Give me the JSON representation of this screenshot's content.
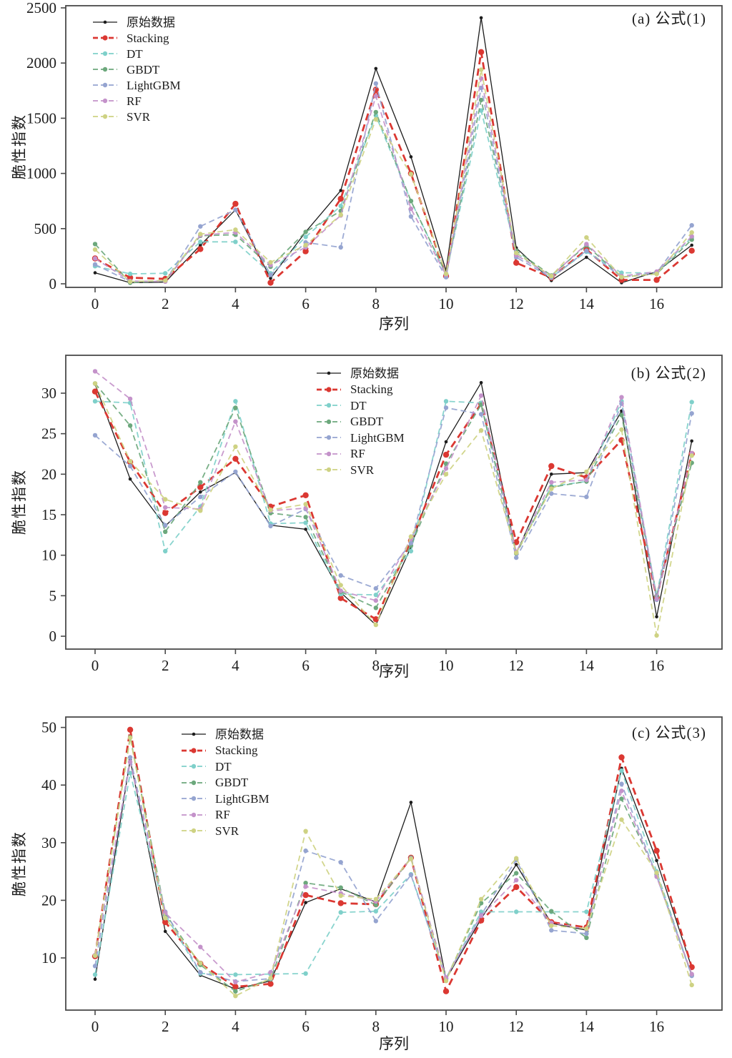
{
  "figure": {
    "ylabel": "脆性指数",
    "xlabel": "序列"
  },
  "chart_data": [
    {
      "type": "line",
      "panel": "a",
      "title": "(a) 公式(1)",
      "xlabel": "序列",
      "ylabel": "脆性指数",
      "x": [
        0,
        1,
        2,
        3,
        4,
        5,
        6,
        7,
        8,
        9,
        10,
        11,
        12,
        13,
        14,
        15,
        16,
        17
      ],
      "xticks": [
        0,
        2,
        4,
        6,
        8,
        10,
        12,
        14,
        16
      ],
      "yticks": [
        0,
        500,
        1000,
        1500,
        2000,
        2500
      ],
      "ylim": [
        0,
        2500
      ],
      "legend_position": "upper-left",
      "grid": false,
      "series": [
        {
          "name": "原始数据",
          "color": "#1c1c1c",
          "line_style": "solid",
          "values": [
            100,
            10,
            15,
            350,
            670,
            50,
            470,
            845,
            1950,
            1150,
            120,
            2410,
            325,
            30,
            240,
            10,
            110,
            350
          ]
        },
        {
          "name": "Stacking",
          "color": "#db3832",
          "line_style": "dashed-bold",
          "values": [
            230,
            55,
            45,
            315,
            725,
            10,
            295,
            770,
            1760,
            1000,
            70,
            2100,
            190,
            55,
            310,
            35,
            35,
            300
          ]
        },
        {
          "name": "DT",
          "color": "#7fd0ca",
          "line_style": "dashed",
          "values": [
            160,
            90,
            95,
            380,
            380,
            95,
            425,
            705,
            1525,
            750,
            90,
            1570,
            280,
            60,
            290,
            100,
            100,
            420
          ]
        },
        {
          "name": "GBDT",
          "color": "#6ca87c",
          "line_style": "dashed",
          "values": [
            360,
            10,
            25,
            435,
            445,
            155,
            470,
            660,
            1555,
            750,
            90,
            1665,
            300,
            75,
            350,
            60,
            90,
            400
          ]
        },
        {
          "name": "LightGBM",
          "color": "#95a4d0",
          "line_style": "dashed",
          "values": [
            175,
            20,
            25,
            520,
            670,
            80,
            375,
            330,
            1815,
            610,
            60,
            1775,
            240,
            55,
            300,
            60,
            100,
            530
          ]
        },
        {
          "name": "RF",
          "color": "#c492ca",
          "line_style": "dashed",
          "values": [
            230,
            25,
            20,
            440,
            465,
            170,
            330,
            620,
            1700,
            680,
            80,
            1860,
            260,
            70,
            360,
            70,
            110,
            430
          ]
        },
        {
          "name": "SVR",
          "color": "#ced283",
          "line_style": "dashed",
          "values": [
            310,
            20,
            30,
            450,
            490,
            195,
            350,
            625,
            1490,
            995,
            90,
            1940,
            280,
            70,
            420,
            60,
            90,
            465
          ]
        }
      ]
    },
    {
      "type": "line",
      "panel": "b",
      "title": "(b) 公式(2)",
      "xlabel": "序列",
      "ylabel": "脆性指数",
      "x": [
        0,
        1,
        2,
        3,
        4,
        5,
        6,
        7,
        8,
        9,
        10,
        11,
        12,
        13,
        14,
        15,
        16,
        17
      ],
      "xticks": [
        0,
        2,
        4,
        6,
        8,
        10,
        12,
        14,
        16
      ],
      "yticks": [
        0,
        5,
        10,
        15,
        20,
        25,
        30
      ],
      "ylim": [
        0,
        33
      ],
      "legend_position": "upper-middle",
      "grid": false,
      "series": [
        {
          "name": "原始数据",
          "color": "#1c1c1c",
          "line_style": "solid",
          "values": [
            31.1,
            19.4,
            13.6,
            17.8,
            20.2,
            13.7,
            13.2,
            5.4,
            1.4,
            11.0,
            24.0,
            31.3,
            10.2,
            20.0,
            20.2,
            27.8,
            2.4,
            24.1
          ]
        },
        {
          "name": "Stacking",
          "color": "#db3832",
          "line_style": "dashed-bold",
          "values": [
            30.2,
            21.5,
            15.2,
            18.4,
            21.9,
            16.0,
            17.4,
            4.7,
            2.1,
            11.8,
            22.4,
            28.7,
            11.6,
            21.0,
            19.6,
            24.2,
            4.8,
            22.5
          ]
        },
        {
          "name": "DT",
          "color": "#7fd0ca",
          "line_style": "dashed",
          "values": [
            29.0,
            28.8,
            10.5,
            16.0,
            29.0,
            13.9,
            14.0,
            5.2,
            5.1,
            10.5,
            29.0,
            28.8,
            10.3,
            18.5,
            19.1,
            29.0,
            4.9,
            28.9
          ]
        },
        {
          "name": "GBDT",
          "color": "#6ca87c",
          "line_style": "dashed",
          "values": [
            31.2,
            26.0,
            12.9,
            19.0,
            28.2,
            15.2,
            14.7,
            5.5,
            3.5,
            11.2,
            21.3,
            28.6,
            10.2,
            18.4,
            19.1,
            27.3,
            5.0,
            21.4
          ]
        },
        {
          "name": "LightGBM",
          "color": "#95a4d0",
          "line_style": "dashed",
          "values": [
            24.8,
            21.0,
            13.7,
            17.2,
            20.3,
            13.6,
            15.7,
            7.5,
            5.9,
            11.5,
            28.2,
            27.4,
            9.7,
            17.6,
            17.2,
            28.7,
            4.5,
            27.5
          ]
        },
        {
          "name": "RF",
          "color": "#c492ca",
          "line_style": "dashed",
          "values": [
            32.7,
            29.3,
            15.9,
            15.7,
            26.5,
            15.5,
            15.8,
            5.6,
            4.4,
            12.0,
            20.7,
            29.7,
            10.4,
            19.0,
            19.3,
            29.5,
            4.6,
            22.6
          ]
        },
        {
          "name": "SVR",
          "color": "#ced283",
          "line_style": "dashed",
          "values": [
            31.2,
            21.6,
            16.9,
            15.5,
            23.4,
            15.6,
            16.3,
            6.3,
            1.4,
            12.3,
            20.0,
            25.4,
            10.3,
            18.2,
            20.3,
            25.5,
            0.1,
            22.3
          ]
        }
      ]
    },
    {
      "type": "line",
      "panel": "c",
      "title": "(c) 公式(3)",
      "xlabel": "序列",
      "ylabel": "脆性指数",
      "x": [
        0,
        1,
        2,
        3,
        4,
        5,
        6,
        7,
        8,
        9,
        10,
        11,
        12,
        13,
        14,
        15,
        16,
        17
      ],
      "xticks": [
        0,
        2,
        4,
        6,
        8,
        10,
        12,
        14,
        16
      ],
      "yticks": [
        10,
        20,
        30,
        40,
        50
      ],
      "ylim": [
        1,
        52
      ],
      "legend_position": "upper-left-middle",
      "grid": false,
      "series": [
        {
          "name": "原始数据",
          "color": "#1c1c1c",
          "line_style": "solid",
          "values": [
            6.3,
            44.4,
            14.6,
            7.0,
            4.6,
            6.0,
            19.6,
            22.0,
            19.7,
            37.0,
            6.3,
            16.8,
            26.2,
            16.0,
            14.8,
            42.9,
            26.9,
            8.3
          ]
        },
        {
          "name": "Stacking",
          "color": "#db3832",
          "line_style": "dashed-bold",
          "values": [
            10.3,
            49.6,
            16.2,
            9.0,
            5.0,
            5.5,
            20.9,
            19.5,
            19.3,
            27.4,
            4.2,
            16.5,
            22.3,
            16.2,
            15.3,
            44.8,
            28.6,
            8.4
          ]
        },
        {
          "name": "DT",
          "color": "#7fd0ca",
          "line_style": "dashed",
          "values": [
            7.1,
            42.1,
            17.5,
            7.3,
            7.1,
            7.2,
            7.3,
            17.9,
            18.1,
            24.5,
            6.5,
            18.0,
            18.0,
            18.0,
            18.0,
            42.5,
            25.0,
            6.9
          ]
        },
        {
          "name": "GBDT",
          "color": "#6ca87c",
          "line_style": "dashed",
          "values": [
            10.4,
            48.3,
            17.7,
            8.8,
            4.2,
            6.3,
            23.0,
            22.2,
            19.2,
            27.4,
            6.3,
            19.5,
            24.7,
            18.1,
            13.5,
            37.6,
            24.5,
            7.0
          ]
        },
        {
          "name": "LightGBM",
          "color": "#95a4d0",
          "line_style": "dashed",
          "values": [
            8.6,
            44.8,
            18.0,
            7.5,
            5.9,
            6.4,
            28.6,
            26.6,
            16.4,
            24.4,
            6.4,
            17.5,
            27.0,
            14.8,
            14.2,
            40.2,
            24.2,
            6.9
          ]
        },
        {
          "name": "RF",
          "color": "#c492ca",
          "line_style": "dashed",
          "values": [
            10.5,
            44.0,
            17.8,
            11.9,
            5.8,
            7.5,
            22.4,
            21.2,
            19.8,
            27.3,
            6.6,
            17.3,
            23.5,
            16.1,
            15.0,
            39.0,
            24.1,
            7.2
          ]
        },
        {
          "name": "SVR",
          "color": "#ced283",
          "line_style": "dashed",
          "values": [
            10.4,
            48.2,
            16.9,
            9.1,
            3.4,
            6.5,
            32.0,
            20.8,
            20.2,
            27.2,
            6.0,
            20.2,
            27.3,
            15.6,
            15.1,
            34.0,
            24.8,
            5.3
          ]
        }
      ]
    }
  ]
}
